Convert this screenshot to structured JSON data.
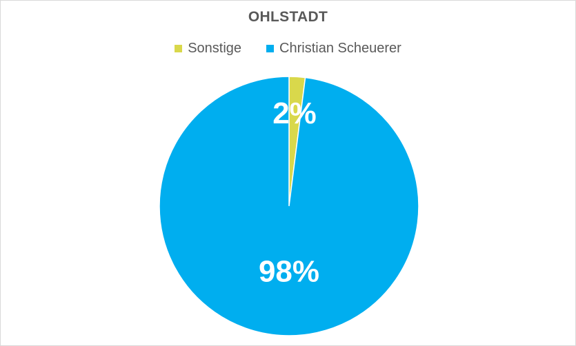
{
  "chart_data": {
    "type": "pie",
    "title": "OHLSTADT",
    "categories": [
      "Sonstige",
      "Christian Scheuerer"
    ],
    "values": [
      2,
      98
    ],
    "data_labels": [
      "2%",
      "98%"
    ],
    "colors": [
      "#d9d84b",
      "#00aeef"
    ],
    "legend_position": "top"
  }
}
